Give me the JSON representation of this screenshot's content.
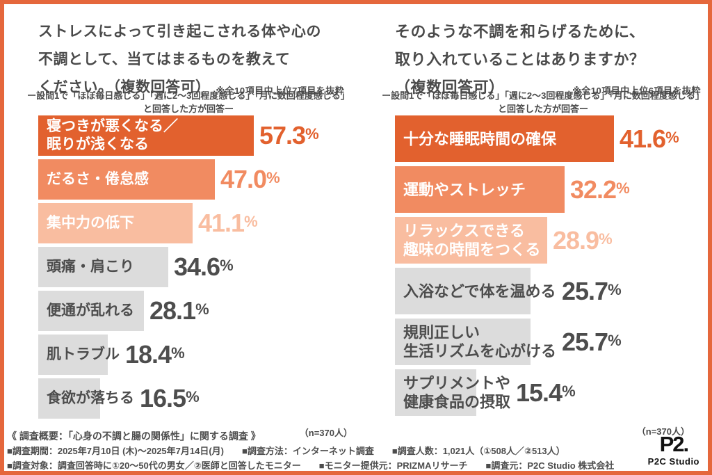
{
  "chart_data": [
    {
      "type": "bar",
      "orientation": "horizontal",
      "unit": "%",
      "title_lines": [
        "ストレスによって引き起こされる体や心の",
        "不調として、当てはまるものを教えて",
        "ください。（複数回答可）"
      ],
      "note": "※全10項目中上位7項目を抜粋",
      "subtitle": "ー設問1で「ほぼ毎日感じる」「週に2〜3回程度感じる」「月に数回程度感じる」\nと回答した方が回答ー",
      "n_label": "（n=370人）",
      "categories": [
        "寝つきが悪くなる／眠りが浅くなる",
        "だるさ・倦怠感",
        "集中力の低下",
        "頭痛・肩こり",
        "便通が乱れる",
        "肌トラブル",
        "食欲が落ちる"
      ],
      "values": [
        57.3,
        47.0,
        41.1,
        34.6,
        28.1,
        18.4,
        16.5
      ],
      "items": [
        {
          "label": "寝つきが悪くなる／\n眠りが浅くなる",
          "value": 57.3,
          "value_label": "57.3",
          "bar_color": "#E2612E",
          "label_color": "#FFFFFF",
          "value_color": "#E2612E"
        },
        {
          "label": "だるさ・倦怠感",
          "value": 47.0,
          "value_label": "47.0",
          "bar_color": "#F18B61",
          "label_color": "#FFFFFF",
          "value_color": "#F18B61"
        },
        {
          "label": "集中力の低下",
          "value": 41.1,
          "value_label": "41.1",
          "bar_color": "#F9BDA0",
          "label_color": "#FFFFFF",
          "value_color": "#F9BDA0"
        },
        {
          "label": "頭痛・肩こり",
          "value": 34.6,
          "value_label": "34.6",
          "bar_color": "#DCDCDC",
          "label_color": "#4D4D4D",
          "value_color": "#4D4D4D"
        },
        {
          "label": "便通が乱れる",
          "value": 28.1,
          "value_label": "28.1",
          "bar_color": "#DCDCDC",
          "label_color": "#4D4D4D",
          "value_color": "#4D4D4D"
        },
        {
          "label": "肌トラブル",
          "value": 18.4,
          "value_label": "18.4",
          "bar_color": "#DCDCDC",
          "label_color": "#4D4D4D",
          "value_color": "#4D4D4D"
        },
        {
          "label": "食欲が落ちる",
          "value": 16.5,
          "value_label": "16.5",
          "bar_color": "#DCDCDC",
          "label_color": "#4D4D4D",
          "value_color": "#4D4D4D"
        }
      ]
    },
    {
      "type": "bar",
      "orientation": "horizontal",
      "unit": "%",
      "title_lines": [
        "そのような不調を和らげるために、",
        "取り入れていることはありますか？",
        "（複数回答可）"
      ],
      "note": "※全10項目中上位6項目を抜粋",
      "subtitle": "ー設問1で「ほぼ毎日感じる」「週に2〜3回程度感じる」「月に数回程度感じる」\nと回答した方が回答ー",
      "n_label": "（n=370人）",
      "categories": [
        "十分な睡眠時間の確保",
        "運動やストレッチ",
        "リラックスできる趣味の時間をつくる",
        "入浴などで体を温める",
        "規則正しい生活リズムを心がける",
        "サプリメントや健康食品の摂取"
      ],
      "values": [
        41.6,
        32.2,
        28.9,
        25.7,
        25.7,
        15.4
      ],
      "items": [
        {
          "label": "十分な睡眠時間の確保",
          "value": 41.6,
          "value_label": "41.6",
          "bar_color": "#E2612E",
          "label_color": "#FFFFFF",
          "value_color": "#E2612E"
        },
        {
          "label": "運動やストレッチ",
          "value": 32.2,
          "value_label": "32.2",
          "bar_color": "#F18B61",
          "label_color": "#FFFFFF",
          "value_color": "#F18B61"
        },
        {
          "label": "リラックスできる\n趣味の時間をつくる",
          "value": 28.9,
          "value_label": "28.9",
          "bar_color": "#F9BDA0",
          "label_color": "#FFFFFF",
          "value_color": "#F9BDA0"
        },
        {
          "label": "入浴などで体を温める",
          "value": 25.7,
          "value_label": "25.7",
          "bar_color": "#DCDCDC",
          "label_color": "#4D4D4D",
          "value_color": "#4D4D4D"
        },
        {
          "label": "規則正しい\n生活リズムを心がける",
          "value": 25.7,
          "value_label": "25.7",
          "bar_color": "#DCDCDC",
          "label_color": "#4D4D4D",
          "value_color": "#4D4D4D"
        },
        {
          "label": "サプリメントや\n健康食品の摂取",
          "value": 15.4,
          "value_label": "15.4",
          "bar_color": "#DCDCDC",
          "label_color": "#4D4D4D",
          "value_color": "#4D4D4D"
        }
      ]
    }
  ],
  "colors": {
    "frame_border": "#E5673C",
    "bar_dark_orange": "#E2612E",
    "bar_mid_orange": "#F18B61",
    "bar_light_salmon": "#F9BDA0",
    "bar_gray": "#DCDCDC",
    "text_dark": "#4A4A4A"
  },
  "footer": {
    "line1": "《 調査概要：「心身の不調と腸の関係性」に関する調査 》",
    "line2": "■調査期間：2025年7月10日 (木)〜2025年7月14日(月)　　■調査方法：インターネット調査　　■調査人数：1,021人（①508人／②513人）",
    "line3": "■調査対象：調査回答時に①20〜50代の男女／②医師と回答したモニター　　■モニター提供元：PRIZMAリサーチ　　■調査元：P2C Studio 株式会社"
  },
  "logo": {
    "mark": "P2.",
    "name": "P2C Studio"
  }
}
